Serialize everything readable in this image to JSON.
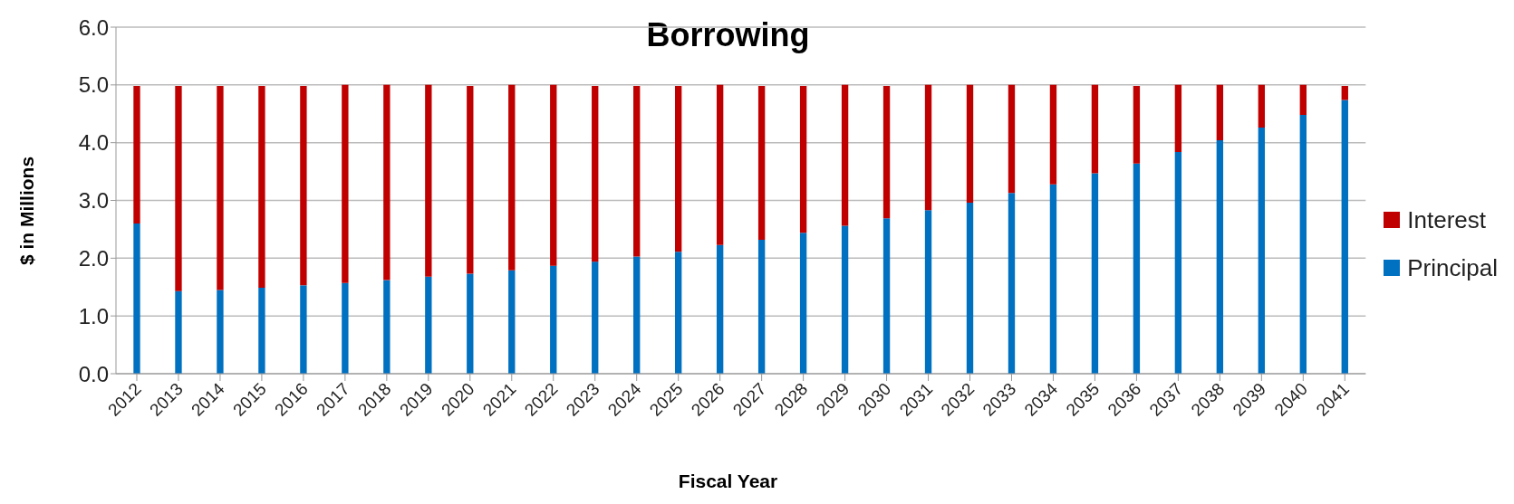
{
  "chart_data": {
    "type": "bar",
    "title": "Borrowing",
    "xlabel": "Fiscal Year",
    "ylabel": "$ in Millions",
    "categories": [
      "2012",
      "2013",
      "2014",
      "2015",
      "2016",
      "2017",
      "2018",
      "2019",
      "2020",
      "2021",
      "2022",
      "2023",
      "2024",
      "2025",
      "2026",
      "2027",
      "2028",
      "2029",
      "2030",
      "2031",
      "2032",
      "2033",
      "2034",
      "2035",
      "2036",
      "2037",
      "2038",
      "2039",
      "2040",
      "2041"
    ],
    "stacked": true,
    "series": [
      {
        "name": "Principal",
        "color": "#0070c0",
        "values": [
          2.6,
          1.43,
          1.45,
          1.49,
          1.53,
          1.57,
          1.62,
          1.68,
          1.73,
          1.79,
          1.87,
          1.94,
          2.03,
          2.11,
          2.23,
          2.32,
          2.44,
          2.56,
          2.69,
          2.83,
          2.96,
          3.13,
          3.28,
          3.47,
          3.64,
          3.84,
          4.04,
          4.26,
          4.48,
          4.74
        ]
      },
      {
        "name": "Interest",
        "color": "#c00000",
        "values": [
          2.38,
          3.55,
          3.53,
          3.49,
          3.45,
          3.43,
          3.38,
          3.32,
          3.25,
          3.21,
          3.13,
          3.04,
          2.95,
          2.87,
          2.77,
          2.66,
          2.54,
          2.44,
          2.29,
          2.17,
          2.04,
          1.87,
          1.72,
          1.53,
          1.34,
          1.16,
          0.96,
          0.74,
          0.52,
          0.24
        ]
      }
    ],
    "ylim": [
      0,
      6
    ],
    "yticks": [
      {
        "value": 0,
        "label": "0.0"
      },
      {
        "value": 1,
        "label": "1.0"
      },
      {
        "value": 2,
        "label": "2.0"
      },
      {
        "value": 3,
        "label": "3.0"
      },
      {
        "value": 4,
        "label": "4.0"
      },
      {
        "value": 5,
        "label": "5.0"
      },
      {
        "value": 6,
        "label": "6.0"
      }
    ],
    "grid": "y",
    "legend": "right"
  }
}
